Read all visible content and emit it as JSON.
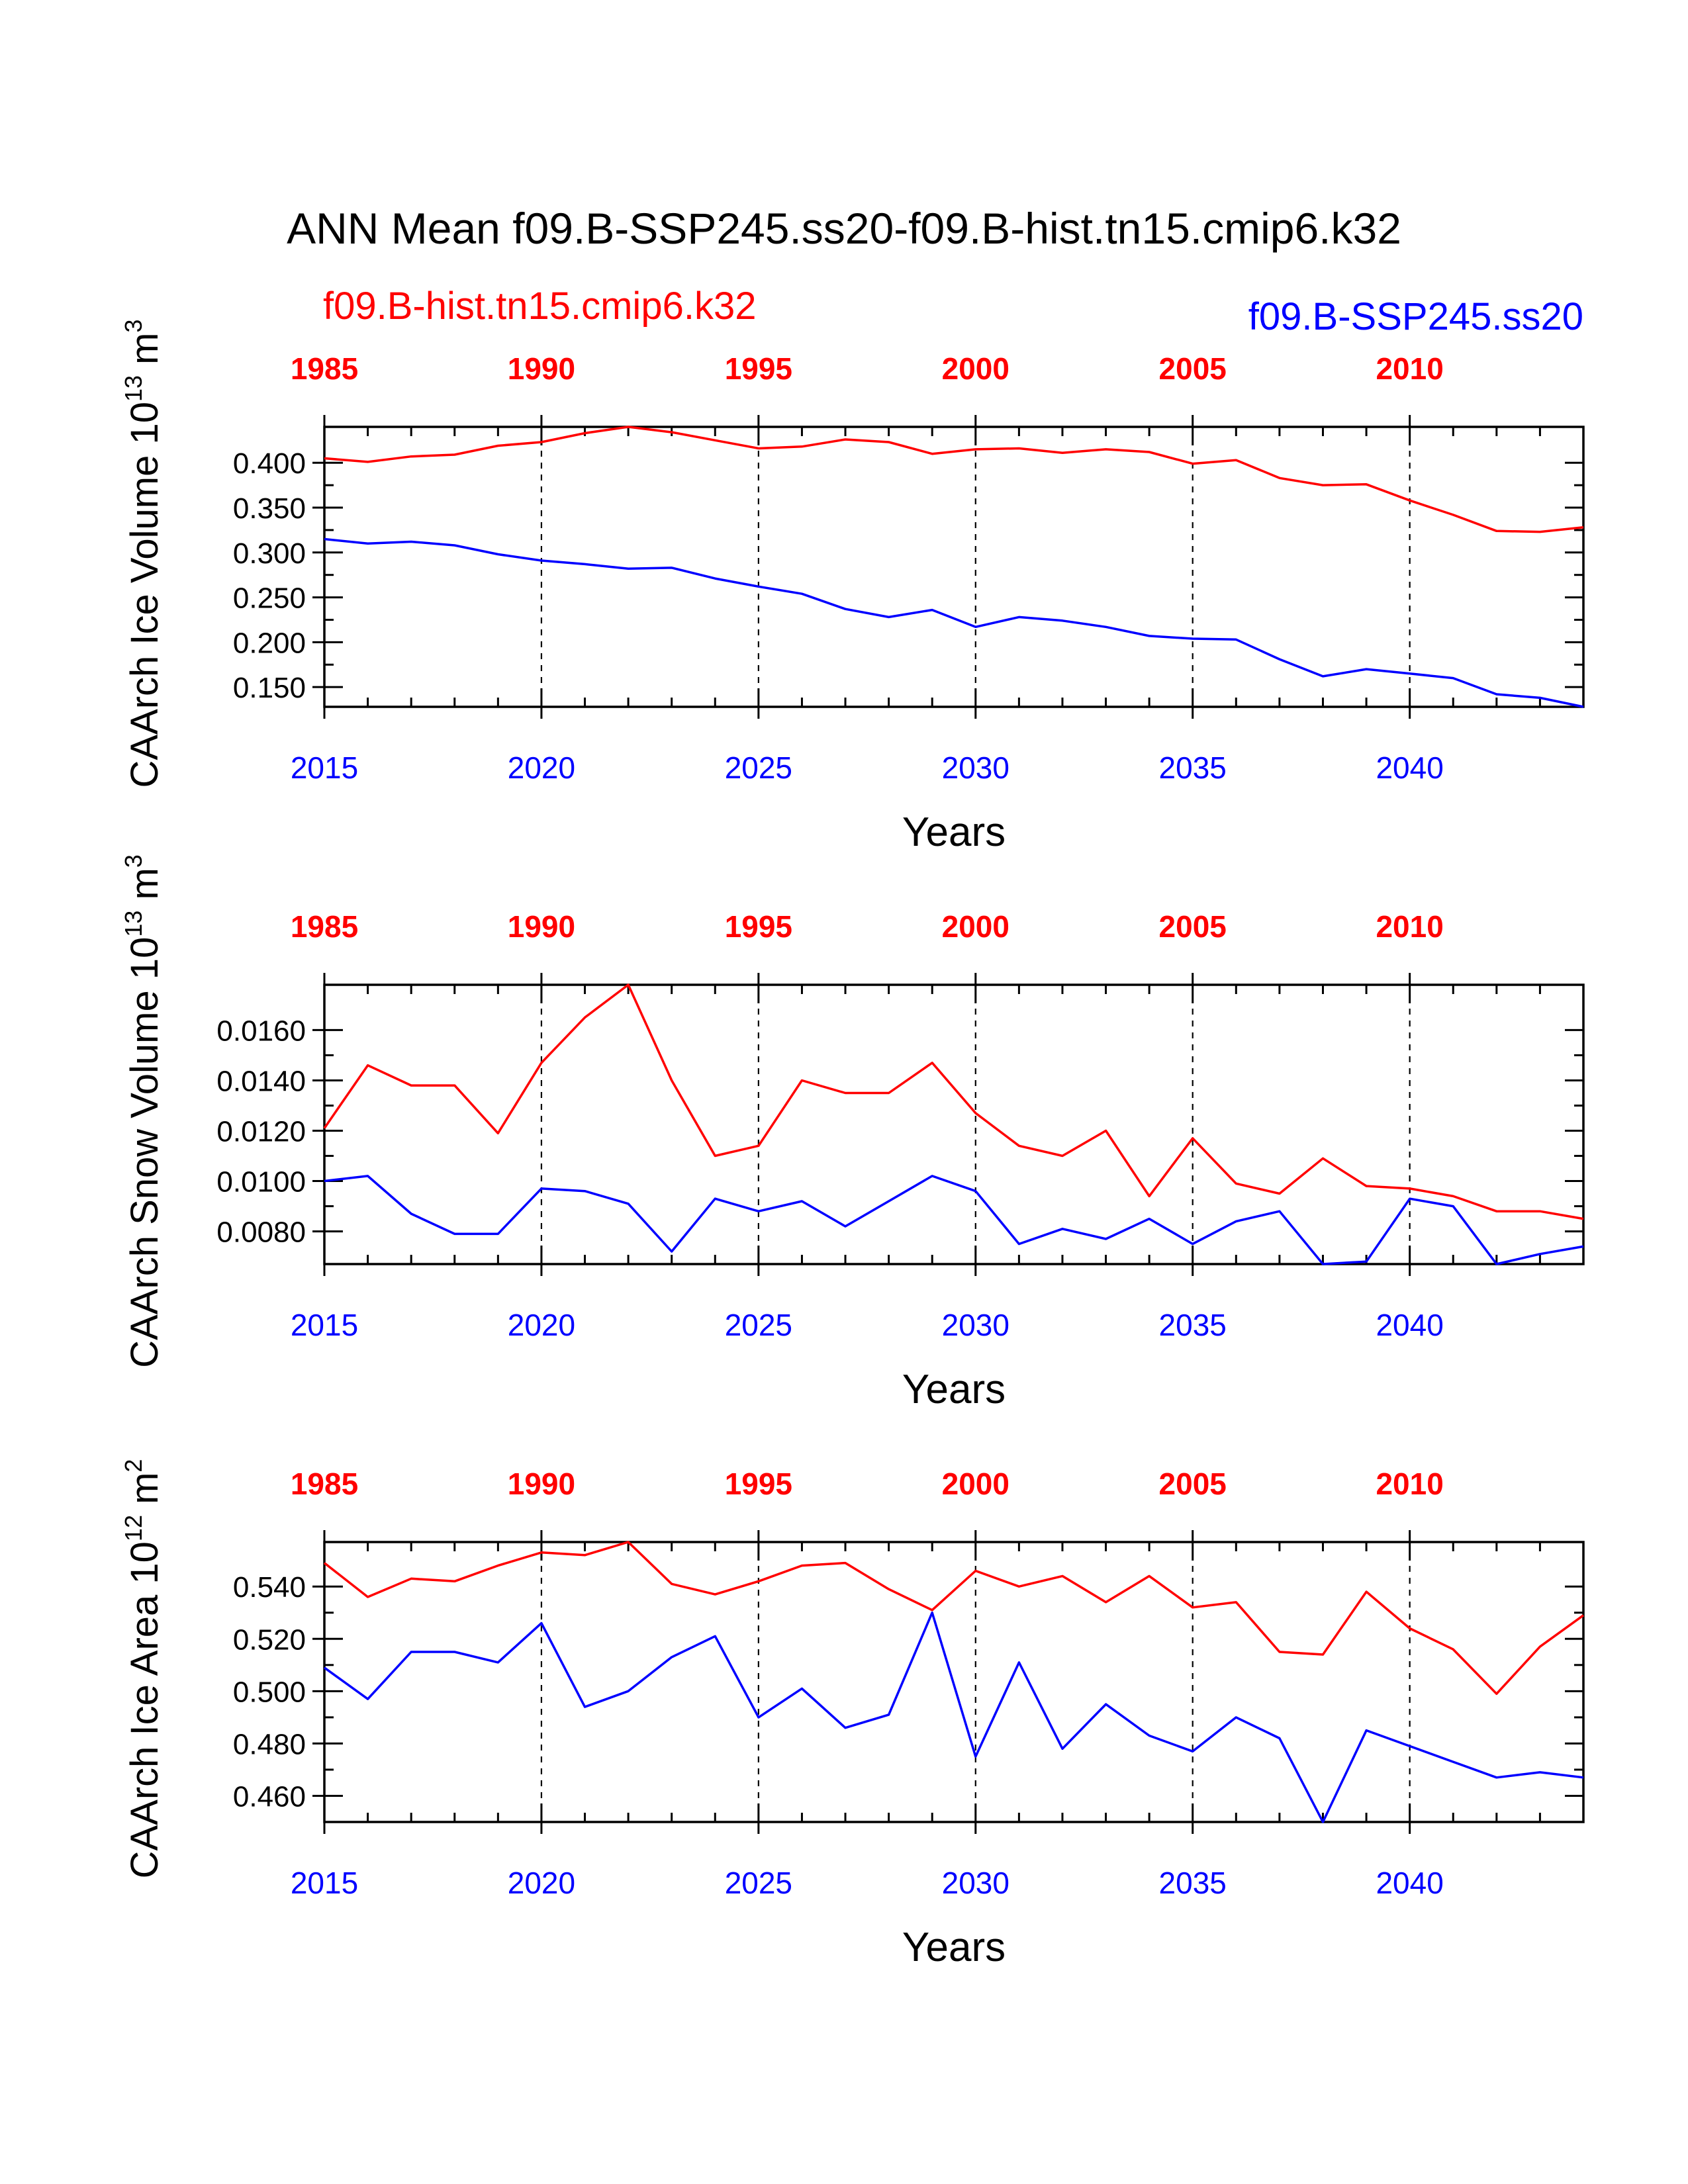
{
  "title": "ANN Mean f09.B-SSP245.ss20-f09.B-hist.tn15.cmip6.k32",
  "legend": {
    "left": "f09.B-hist.tn15.cmip6.k32",
    "right": "f09.B-SSP245.ss20"
  },
  "colors": {
    "hist": "#ff0000",
    "ssp": "#0000ff",
    "axis": "#000000"
  },
  "chart_data": [
    {
      "type": "line",
      "ylabel_main": "CAArch Ice Volume 10",
      "ylabel_exp": "13",
      "ylabel_unit": " m",
      "ylabel_unit_exp": "3",
      "xlabel": "Years",
      "xlim_bottom": [
        2015,
        2044
      ],
      "ylim": [
        0.128,
        0.44
      ],
      "yticks": [
        0.15,
        0.2,
        0.25,
        0.3,
        0.35,
        0.4
      ],
      "ytick_labels": [
        "0.150",
        "0.200",
        "0.250",
        "0.300",
        "0.350",
        "0.400"
      ],
      "top_ticks": [
        "1985",
        "1990",
        "1995",
        "2000",
        "2005",
        "2010"
      ],
      "bottom_ticks": [
        "2015",
        "2020",
        "2025",
        "2030",
        "2035",
        "2040"
      ],
      "series": [
        {
          "name": "f09.B-hist.tn15.cmip6.k32",
          "color": "#ff0000",
          "values": [
            0.405,
            0.401,
            0.407,
            0.409,
            0.419,
            0.423,
            0.433,
            0.44,
            0.434,
            0.425,
            0.416,
            0.418,
            0.426,
            0.423,
            0.41,
            0.415,
            0.416,
            0.411,
            0.415,
            0.412,
            0.399,
            0.403,
            0.383,
            0.375,
            0.376,
            0.358,
            0.342,
            0.324,
            0.323,
            0.328
          ]
        },
        {
          "name": "f09.B-SSP245.ss20",
          "color": "#0000ff",
          "values": [
            0.315,
            0.31,
            0.312,
            0.308,
            0.298,
            0.291,
            0.287,
            0.282,
            0.283,
            0.271,
            0.262,
            0.254,
            0.237,
            0.228,
            0.236,
            0.217,
            0.228,
            0.224,
            0.217,
            0.207,
            0.204,
            0.203,
            0.181,
            0.162,
            0.17,
            0.165,
            0.16,
            0.142,
            0.138,
            0.128
          ]
        }
      ]
    },
    {
      "type": "line",
      "ylabel_main": "CAArch Snow Volume 10",
      "ylabel_exp": "13",
      "ylabel_unit": " m",
      "ylabel_unit_exp": "3",
      "xlabel": "Years",
      "xlim_bottom": [
        2015,
        2044
      ],
      "ylim": [
        0.0067,
        0.0178
      ],
      "yticks": [
        0.008,
        0.01,
        0.012,
        0.014,
        0.016
      ],
      "ytick_labels": [
        "0.0080",
        "0.0100",
        "0.0120",
        "0.0140",
        "0.0160"
      ],
      "top_ticks": [
        "1985",
        "1990",
        "1995",
        "2000",
        "2005",
        "2010"
      ],
      "bottom_ticks": [
        "2015",
        "2020",
        "2025",
        "2030",
        "2035",
        "2040"
      ],
      "series": [
        {
          "name": "f09.B-hist.tn15.cmip6.k32",
          "color": "#ff0000",
          "values": [
            0.0121,
            0.0146,
            0.0138,
            0.0138,
            0.0119,
            0.0147,
            0.0165,
            0.0178,
            0.014,
            0.011,
            0.0114,
            0.014,
            0.0135,
            0.0135,
            0.0147,
            0.0127,
            0.0114,
            0.011,
            0.012,
            0.0094,
            0.0117,
            0.0099,
            0.0095,
            0.0109,
            0.0098,
            0.0097,
            0.0094,
            0.0088,
            0.0088,
            0.0085
          ]
        },
        {
          "name": "f09.B-SSP245.ss20",
          "color": "#0000ff",
          "values": [
            0.01,
            0.0102,
            0.0087,
            0.0079,
            0.0079,
            0.0097,
            0.0096,
            0.0091,
            0.0072,
            0.0093,
            0.0088,
            0.0092,
            0.0082,
            0.0092,
            0.0102,
            0.0096,
            0.0075,
            0.0081,
            0.0077,
            0.0085,
            0.0075,
            0.0084,
            0.0088,
            0.0067,
            0.0068,
            0.0093,
            0.009,
            0.0067,
            0.0071,
            0.0074
          ]
        }
      ]
    },
    {
      "type": "line",
      "ylabel_main": "CAArch Ice Area 10",
      "ylabel_exp": "12",
      "ylabel_unit": " m",
      "ylabel_unit_exp": "2",
      "xlabel": "Years",
      "xlim_bottom": [
        2015,
        2044
      ],
      "ylim": [
        0.45,
        0.557
      ],
      "yticks": [
        0.46,
        0.48,
        0.5,
        0.52,
        0.54
      ],
      "ytick_labels": [
        "0.460",
        "0.480",
        "0.500",
        "0.520",
        "0.540"
      ],
      "top_ticks": [
        "1985",
        "1990",
        "1995",
        "2000",
        "2005",
        "2010"
      ],
      "bottom_ticks": [
        "2015",
        "2020",
        "2025",
        "2030",
        "2035",
        "2040"
      ],
      "series": [
        {
          "name": "f09.B-hist.tn15.cmip6.k32",
          "color": "#ff0000",
          "values": [
            0.549,
            0.536,
            0.543,
            0.542,
            0.548,
            0.553,
            0.552,
            0.557,
            0.541,
            0.537,
            0.542,
            0.548,
            0.549,
            0.539,
            0.531,
            0.546,
            0.54,
            0.544,
            0.534,
            0.544,
            0.532,
            0.534,
            0.515,
            0.514,
            0.538,
            0.524,
            0.516,
            0.499,
            0.517,
            0.529
          ]
        },
        {
          "name": "f09.B-SSP245.ss20",
          "color": "#0000ff",
          "values": [
            0.509,
            0.497,
            0.515,
            0.515,
            0.511,
            0.526,
            0.494,
            0.5,
            0.513,
            0.521,
            0.49,
            0.501,
            0.486,
            0.491,
            0.53,
            0.475,
            0.511,
            0.478,
            0.495,
            0.483,
            0.477,
            0.49,
            0.482,
            0.45,
            0.485,
            0.479,
            0.473,
            0.467,
            0.469,
            0.467
          ]
        }
      ]
    }
  ]
}
